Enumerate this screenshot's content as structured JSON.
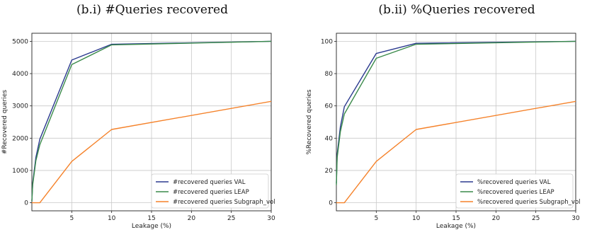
{
  "colors": {
    "val": "#2b3a8f",
    "leap": "#3a8a4a",
    "subgraph": "#f5822a",
    "grid": "#c8c8c8"
  },
  "chart_data": [
    {
      "type": "line",
      "title": "(b.i) #Queries recovered",
      "xlabel": "Leakage (%)",
      "ylabel": "#Recovered queries",
      "xlim": [
        0,
        30
      ],
      "ylim": [
        -250,
        5250
      ],
      "xticks": [
        5,
        10,
        15,
        20,
        25,
        30
      ],
      "yticks": [
        0,
        1000,
        2000,
        3000,
        4000,
        5000
      ],
      "grid": true,
      "legend_position": "lower-right",
      "series": [
        {
          "name": "#recovered queries VAL",
          "color_key": "val",
          "x": [
            0,
            0.1,
            0.5,
            1,
            5,
            10,
            30
          ],
          "y": [
            50,
            600,
            1400,
            1970,
            4420,
            4910,
            5000
          ]
        },
        {
          "name": "#recovered queries LEAP",
          "color_key": "leap",
          "x": [
            0,
            0.1,
            0.5,
            1,
            5,
            10,
            30
          ],
          "y": [
            50,
            550,
            1300,
            1800,
            4280,
            4890,
            5000
          ]
        },
        {
          "name": "#recovered queries Subgraph_vol",
          "color_key": "subgraph",
          "x": [
            0,
            1,
            5,
            10,
            30
          ],
          "y": [
            0,
            0,
            1280,
            2270,
            3140
          ]
        }
      ]
    },
    {
      "type": "line",
      "title": "(b.ii) %Queries recovered",
      "xlabel": "Leakage (%)",
      "ylabel": "%Recovered queries",
      "xlim": [
        0,
        30
      ],
      "ylim": [
        -5,
        105
      ],
      "xticks": [
        5,
        10,
        15,
        20,
        25,
        30
      ],
      "yticks": [
        0,
        20,
        40,
        60,
        80,
        100
      ],
      "grid": true,
      "legend_position": "lower-right",
      "series": [
        {
          "name": "%recovered queries VAL",
          "color_key": "val",
          "x": [
            0,
            0.1,
            0.5,
            1,
            5,
            10,
            30
          ],
          "y": [
            12,
            30,
            47,
            59.5,
            92.5,
            98.8,
            100
          ]
        },
        {
          "name": "%recovered queries LEAP",
          "color_key": "leap",
          "x": [
            0,
            0.1,
            0.5,
            1,
            5,
            10,
            30
          ],
          "y": [
            11,
            28,
            44,
            55,
            89.5,
            98.2,
            100
          ]
        },
        {
          "name": "%recovered queries Subgraph_vol",
          "color_key": "subgraph",
          "x": [
            0,
            1,
            5,
            10,
            30
          ],
          "y": [
            0,
            0,
            25.6,
            45.4,
            62.8
          ]
        }
      ]
    }
  ]
}
